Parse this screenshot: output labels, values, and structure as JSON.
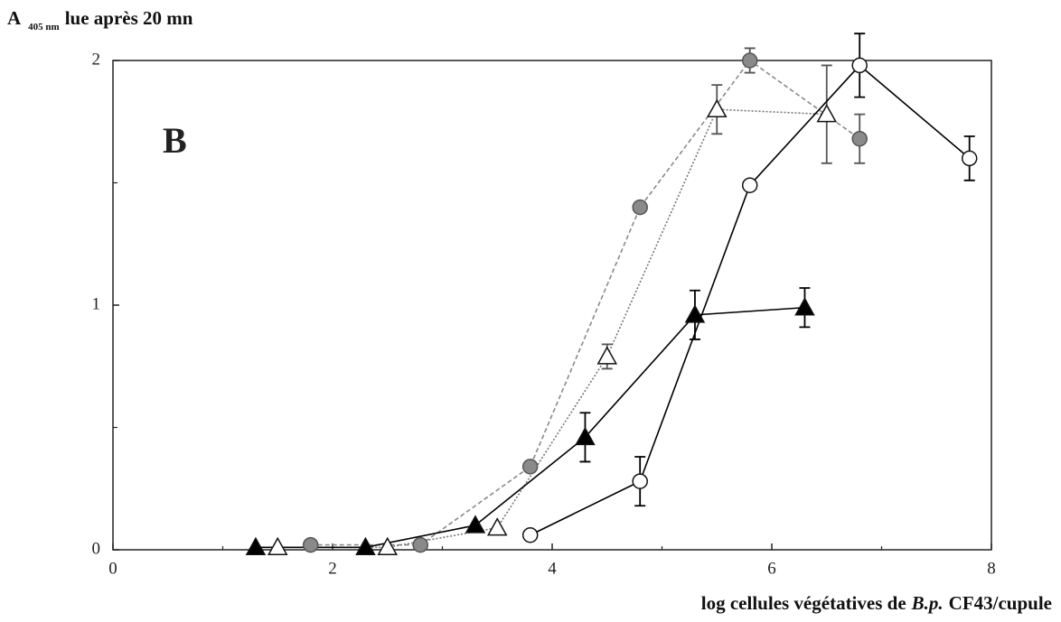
{
  "chart_data": {
    "type": "line",
    "ylabel": [
      "A",
      "405 nm",
      "lue après 20 mn"
    ],
    "xlabel": [
      "log cellules végétatives de",
      "B.p.",
      "CF43/cupule"
    ],
    "annotation": "B",
    "xlim": [
      0,
      8
    ],
    "xticks": [
      0,
      2,
      4,
      6,
      8
    ],
    "xminor": [
      1,
      3,
      5,
      7
    ],
    "ylim": [
      0,
      2
    ],
    "yticks": [
      0,
      1,
      2
    ],
    "yminor": [
      0.5,
      1.5
    ],
    "series": [
      {
        "marker": "circle",
        "color": "#8a8a8a",
        "fill": "#8a8a8a",
        "line": "dashed",
        "x": [
          1.8,
          2.8,
          3.8,
          4.8,
          5.8,
          6.8
        ],
        "values": [
          0.02,
          0.02,
          0.34,
          1.4,
          2.0,
          1.68
        ],
        "errors": [
          null,
          null,
          null,
          null,
          0.05,
          0.1
        ]
      },
      {
        "marker": "triangle",
        "color": "#777777",
        "fill": "#ffffff",
        "line": "dotted",
        "x": [
          1.5,
          2.5,
          3.5,
          4.5,
          5.5,
          6.5
        ],
        "values": [
          0.01,
          0.01,
          0.09,
          0.79,
          1.8,
          1.78
        ],
        "errors": [
          null,
          null,
          null,
          0.05,
          0.1,
          0.2
        ]
      },
      {
        "marker": "triangle",
        "color": "#000000",
        "fill": "#000000",
        "line": "solid",
        "x": [
          1.3,
          2.3,
          3.3,
          4.3,
          5.3,
          6.3
        ],
        "values": [
          0.01,
          0.01,
          0.1,
          0.46,
          0.96,
          0.99
        ],
        "errors": [
          null,
          null,
          null,
          0.1,
          0.1,
          0.08
        ]
      },
      {
        "marker": "circle",
        "color": "#000000",
        "fill": "#ffffff",
        "line": "solid",
        "x": [
          3.8,
          4.8,
          5.8,
          6.8,
          7.8
        ],
        "values": [
          0.06,
          0.28,
          1.49,
          1.98,
          1.6
        ],
        "errors": [
          null,
          0.1,
          0.02,
          0.13,
          0.09
        ]
      }
    ]
  }
}
